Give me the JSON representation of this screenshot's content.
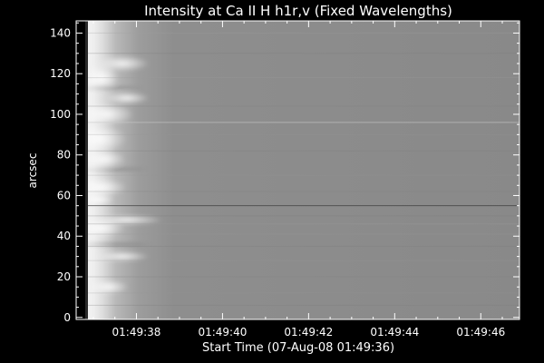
{
  "figure": {
    "title": "Intensity at Ca II H h1r,v (Fixed Wavelengths)",
    "xlabel": "Start Time (07-Aug-08 01:49:36)",
    "ylabel": "arcsec",
    "x_ticks": [
      "01:49:38",
      "01:49:40",
      "01:49:42",
      "01:49:44",
      "01:49:46"
    ],
    "y_ticks": [
      "0",
      "20",
      "40",
      "60",
      "80",
      "100",
      "120",
      "140"
    ]
  },
  "chart_data": {
    "type": "heatmap",
    "title": "Intensity at Ca II H h1r,v (Fixed Wavelengths)",
    "xlabel": "Start Time (07-Aug-08 01:49:36)",
    "ylabel": "arcsec",
    "x_range_seconds_after_start": [
      0.6,
      10.9
    ],
    "ylim": [
      -1,
      146
    ],
    "x_tick_labels": [
      "01:49:38",
      "01:49:40",
      "01:49:42",
      "01:49:44",
      "01:49:46"
    ],
    "y_tick_values": [
      0,
      20,
      40,
      60,
      80,
      100,
      120,
      140
    ],
    "colormap": "grayscale",
    "frame_color": "#ffffff",
    "background": "#000000",
    "background_intensity_gray": "#8a8a8a"
  }
}
